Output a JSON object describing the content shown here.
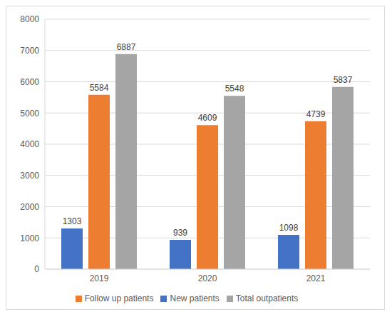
{
  "chart_data": {
    "type": "bar",
    "categories": [
      "2019",
      "2020",
      "2021"
    ],
    "series": [
      {
        "name": "New patients",
        "color": "#4472c4",
        "values": [
          1303,
          939,
          1098
        ]
      },
      {
        "name": "Follow up patients",
        "color": "#ed7d31",
        "values": [
          5584,
          4609,
          4739
        ]
      },
      {
        "name": "Total outpatients",
        "color": "#a5a5a5",
        "values": [
          6887,
          5548,
          5837
        ]
      }
    ],
    "ylim": [
      0,
      8000
    ],
    "yticks": [
      0,
      1000,
      2000,
      3000,
      4000,
      5000,
      6000,
      7000,
      8000
    ],
    "grid": true,
    "legend": "bottom",
    "data_labels": true
  }
}
